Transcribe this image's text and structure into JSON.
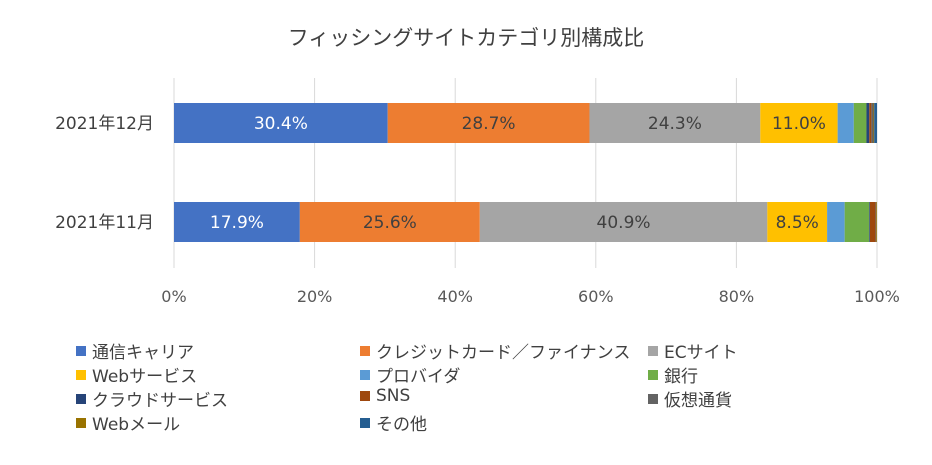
{
  "chart_data": {
    "type": "bar",
    "orientation": "horizontal",
    "stacked": "percent",
    "title": "フィッシングサイトカテゴリ別構成比",
    "categories": [
      "2021年12月",
      "2021年11月"
    ],
    "x_ticks": [
      "0%",
      "20%",
      "40%",
      "60%",
      "80%",
      "100%"
    ],
    "xlim": [
      0,
      100
    ],
    "grid": true,
    "legend_position": "bottom",
    "series": [
      {
        "name": "通信キャリア",
        "color": "#4472C4",
        "values": [
          30.4,
          17.9
        ],
        "labels": [
          "30.4%",
          "17.9%"
        ],
        "label_color": "#ffffff"
      },
      {
        "name": "クレジットカード／ファイナンス",
        "color": "#ED7D31",
        "values": [
          28.7,
          25.6
        ],
        "labels": [
          "28.7%",
          "25.6%"
        ],
        "label_color": "#404040"
      },
      {
        "name": "ECサイト",
        "color": "#A5A5A5",
        "values": [
          24.3,
          40.9
        ],
        "labels": [
          "24.3%",
          "40.9%"
        ],
        "label_color": "#404040"
      },
      {
        "name": "Webサービス",
        "color": "#FFC000",
        "values": [
          11.0,
          8.5
        ],
        "labels": [
          "11.0%",
          "8.5%"
        ],
        "label_color": "#404040"
      },
      {
        "name": "プロバイダ",
        "color": "#5B9BD5",
        "values": [
          2.3,
          2.5
        ],
        "labels": [
          "",
          ""
        ],
        "label_color": "#404040"
      },
      {
        "name": "銀行",
        "color": "#70AD47",
        "values": [
          1.8,
          3.5
        ],
        "labels": [
          "",
          ""
        ],
        "label_color": "#404040"
      },
      {
        "name": "クラウドサービス",
        "color": "#264478",
        "values": [
          0.4,
          0.1
        ],
        "labels": [
          "",
          ""
        ],
        "label_color": "#404040"
      },
      {
        "name": "SNS",
        "color": "#9E480E",
        "values": [
          0.3,
          0.8
        ],
        "labels": [
          "",
          ""
        ],
        "label_color": "#404040"
      },
      {
        "name": "仮想通貨",
        "color": "#636363",
        "values": [
          0.3,
          0.1
        ],
        "labels": [
          "",
          ""
        ],
        "label_color": "#404040"
      },
      {
        "name": "Webメール",
        "color": "#997300",
        "values": [
          0.1,
          0.1
        ],
        "labels": [
          "",
          ""
        ],
        "label_color": "#404040"
      },
      {
        "name": "その他",
        "color": "#255E91",
        "values": [
          0.4,
          0.0
        ],
        "labels": [
          "",
          ""
        ],
        "label_color": "#404040"
      }
    ]
  }
}
